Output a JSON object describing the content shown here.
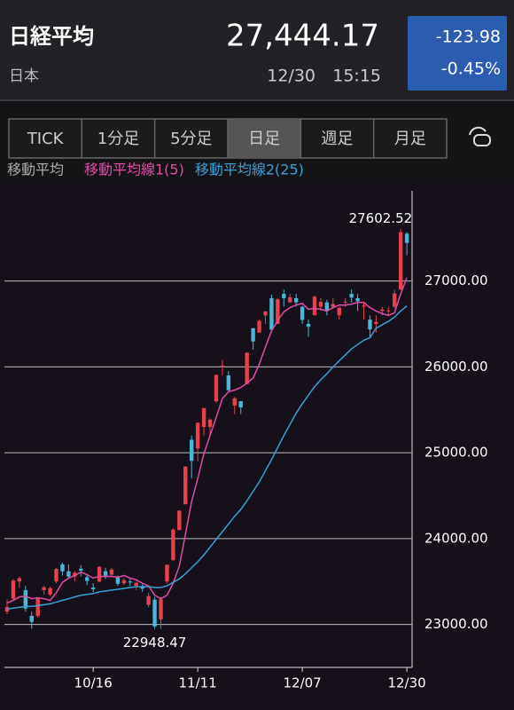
{
  "header": {
    "title": "日経平均",
    "region": "日本",
    "price": "27,444.17",
    "date": "12/30",
    "time": "15:15",
    "change": "-123.98",
    "change_pct": "-0.45%"
  },
  "tabs": {
    "labels": [
      "TICK",
      "1分足",
      "5分足",
      "日足",
      "週足",
      "月足"
    ],
    "selected": 3
  },
  "legend_label": "移動平均",
  "chart_data": {
    "type": "candlestick",
    "categories": [
      null,
      null,
      null,
      null,
      null,
      null,
      null,
      null,
      null,
      null,
      null,
      null,
      null,
      null,
      "10/16",
      null,
      null,
      null,
      null,
      null,
      null,
      null,
      null,
      null,
      null,
      null,
      null,
      null,
      null,
      null,
      null,
      "11/11",
      null,
      null,
      null,
      null,
      null,
      null,
      null,
      null,
      null,
      null,
      null,
      null,
      null,
      null,
      null,
      null,
      "12/07",
      null,
      null,
      null,
      null,
      null,
      null,
      null,
      null,
      null,
      null,
      null,
      null,
      null,
      null,
      null,
      null,
      "12/30"
    ],
    "open": [
      23150,
      23300,
      23500,
      23400,
      23100,
      23100,
      23400,
      23350,
      23500,
      23700,
      23620,
      23560,
      23650,
      23550,
      23430,
      23500,
      23620,
      23580,
      23550,
      23480,
      23500,
      23450,
      23440,
      23230,
      23290,
      23060,
      23500,
      23750,
      24100,
      24400,
      25150,
      25050,
      25300,
      25300,
      25600,
      26000,
      25900,
      25550,
      25600,
      25800,
      26450,
      26400,
      26600,
      26800,
      26500,
      26850,
      26750,
      26800,
      26700,
      26500,
      26600,
      26700,
      26750,
      26700,
      26600,
      26750,
      26850,
      26800,
      26700,
      26550,
      26500,
      26650,
      26650,
      26700,
      26900,
      27550
    ],
    "high": [
      23290,
      23530,
      23560,
      23450,
      23150,
      23320,
      23450,
      23440,
      23660,
      23720,
      23700,
      23620,
      23690,
      23580,
      23480,
      23680,
      23660,
      23660,
      23570,
      23540,
      23530,
      23500,
      23470,
      23370,
      23320,
      23320,
      23700,
      24120,
      24330,
      24840,
      25200,
      25350,
      25520,
      25400,
      25910,
      26080,
      25950,
      25650,
      25600,
      26170,
      26450,
      26550,
      26650,
      26840,
      26800,
      26900,
      26850,
      26850,
      26710,
      26550,
      26830,
      26800,
      26780,
      26800,
      26700,
      26800,
      26900,
      26850,
      26750,
      26600,
      26600,
      26700,
      26700,
      26900,
      27602.52,
      27570
    ],
    "low": [
      23120,
      23280,
      23430,
      23150,
      22950,
      23080,
      23350,
      23330,
      23480,
      23570,
      23530,
      23500,
      23560,
      23460,
      23380,
      23490,
      23530,
      23560,
      23450,
      23460,
      23450,
      23400,
      23380,
      23200,
      22948.47,
      22950,
      23480,
      23740,
      24100,
      24400,
      24700,
      24900,
      25200,
      25200,
      25580,
      25900,
      25700,
      25450,
      25450,
      25800,
      26200,
      26400,
      26500,
      26400,
      26500,
      26700,
      26750,
      26700,
      26500,
      26350,
      26600,
      26650,
      26600,
      26680,
      26550,
      26700,
      26750,
      26650,
      26550,
      26350,
      26400,
      26600,
      26600,
      26680,
      26900,
      27300
    ],
    "close": [
      23204,
      23511,
      23539,
      23185,
      23029,
      23312,
      23433,
      23422,
      23647,
      23619,
      23558,
      23601,
      23626,
      23507,
      23410,
      23671,
      23567,
      23639,
      23474,
      23516,
      23494,
      23485,
      23418,
      23331,
      22977,
      23295,
      23695,
      24105,
      24325,
      24839,
      24905,
      25349,
      25520,
      25385,
      25906,
      26014,
      25728,
      25634,
      25527,
      26165,
      26296,
      26537,
      26644,
      26433,
      26787,
      26800,
      26809,
      26751,
      26547,
      26467,
      26817,
      26756,
      26652,
      26732,
      26687,
      26757,
      26806,
      26763,
      26714,
      26436,
      26524,
      26668,
      26656,
      26854,
      27568,
      27444.17
    ],
    "up_color": "#e8414c",
    "down_color": "#4ab7d6",
    "series": [
      {
        "name": "移動平均線1(5)",
        "color": "#e04ca6",
        "values": [
          23250,
          23280,
          23320,
          23330,
          23300,
          23310,
          23300,
          23280,
          23370,
          23490,
          23540,
          23570,
          23610,
          23580,
          23540,
          23560,
          23560,
          23560,
          23550,
          23570,
          23540,
          23520,
          23480,
          23450,
          23340,
          23300,
          23340,
          23480,
          23680,
          24050,
          24430,
          24700,
          24990,
          25200,
          25410,
          25630,
          25710,
          25730,
          25760,
          25810,
          25870,
          26030,
          26230,
          26420,
          26540,
          26640,
          26690,
          26720,
          26740,
          26670,
          26680,
          26670,
          26650,
          26690,
          26720,
          26720,
          26730,
          26750,
          26750,
          26690,
          26650,
          26620,
          26600,
          26630,
          26850,
          27040
        ]
      },
      {
        "name": "移動平均線2(25)",
        "color": "#3aa0d8",
        "values": [
          23180,
          23190,
          23200,
          23210,
          23210,
          23220,
          23230,
          23240,
          23260,
          23280,
          23300,
          23320,
          23340,
          23350,
          23360,
          23380,
          23390,
          23400,
          23410,
          23420,
          23430,
          23440,
          23440,
          23440,
          23430,
          23430,
          23450,
          23490,
          23530,
          23590,
          23660,
          23730,
          23810,
          23900,
          23990,
          24080,
          24170,
          24260,
          24340,
          24440,
          24550,
          24660,
          24790,
          24920,
          25060,
          25200,
          25330,
          25460,
          25570,
          25670,
          25770,
          25850,
          25920,
          26000,
          26070,
          26140,
          26210,
          26260,
          26310,
          26340,
          26450,
          26490,
          26530,
          26580,
          26650,
          26710
        ]
      }
    ],
    "ylim": [
      22500,
      28050
    ],
    "yticks": [
      {
        "value": 23000,
        "label": "23000.00"
      },
      {
        "value": 24000,
        "label": "24000.00"
      },
      {
        "value": 25000,
        "label": "25000.00"
      },
      {
        "value": 26000,
        "label": "26000.00"
      },
      {
        "value": 27000,
        "label": "27000.00"
      }
    ],
    "grid": true
  }
}
